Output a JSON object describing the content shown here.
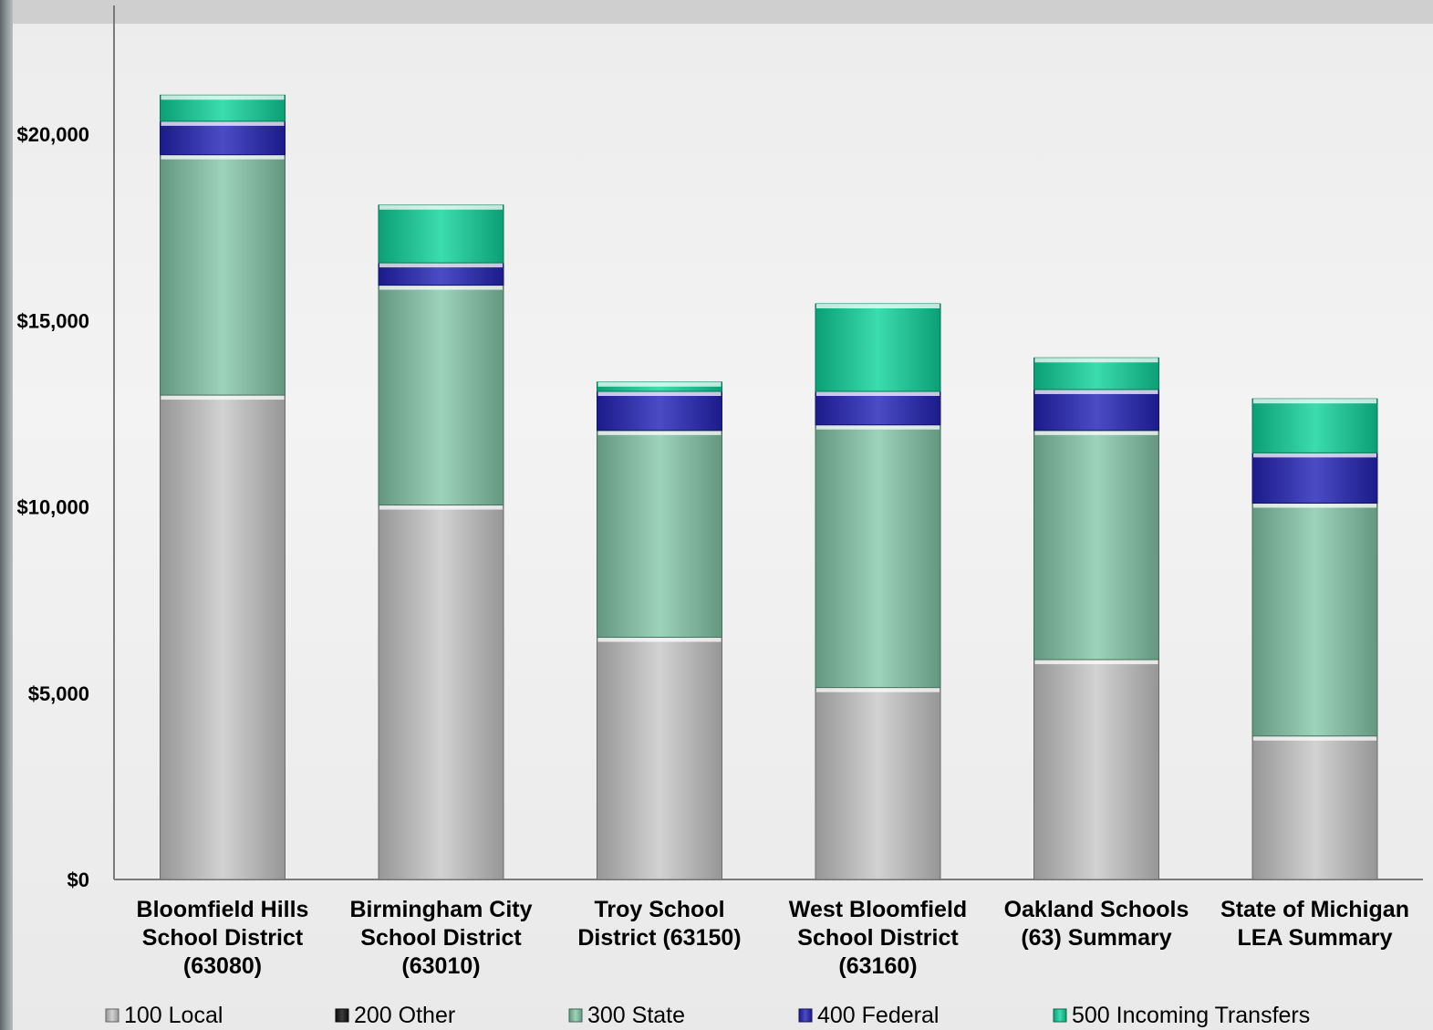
{
  "chart_data": {
    "type": "bar",
    "stacked": true,
    "title": "",
    "xlabel": "",
    "ylabel": "",
    "ylim": [
      0,
      23000
    ],
    "y_ticks": [
      {
        "value": 0,
        "label": "$0"
      },
      {
        "value": 5000,
        "label": "$5,000"
      },
      {
        "value": 10000,
        "label": "$10,000"
      },
      {
        "value": 15000,
        "label": "$15,000"
      },
      {
        "value": 20000,
        "label": "$20,000"
      }
    ],
    "categories": [
      [
        "Bloomfield Hills",
        "School District",
        "(63080)"
      ],
      [
        "Birmingham City",
        "School District",
        "(63010)"
      ],
      [
        "Troy School",
        "District (63150)"
      ],
      [
        "West Bloomfield",
        "School District",
        "(63160)"
      ],
      [
        "Oakland Schools",
        "(63) Summary"
      ],
      [
        "State of Michigan",
        "LEA Summary"
      ]
    ],
    "series": [
      {
        "name": "100 Local",
        "color": "#c8c8c8",
        "values": [
          13000,
          10050,
          6500,
          5150,
          5900,
          3850
        ]
      },
      {
        "name": "200 Other",
        "color": "#111111",
        "values": [
          0,
          0,
          0,
          0,
          0,
          0
        ]
      },
      {
        "name": "300 State",
        "color": "#86c9aa",
        "values": [
          6450,
          5900,
          5550,
          7050,
          6150,
          6250
        ]
      },
      {
        "name": "400 Federal",
        "color": "#2424b8",
        "values": [
          900,
          600,
          1050,
          900,
          1100,
          1350
        ]
      },
      {
        "name": "500 Incoming Transfers",
        "color": "#10d49c",
        "values": [
          700,
          1550,
          250,
          2350,
          850,
          1450
        ]
      }
    ],
    "legend_position": "bottom",
    "grid": false
  }
}
